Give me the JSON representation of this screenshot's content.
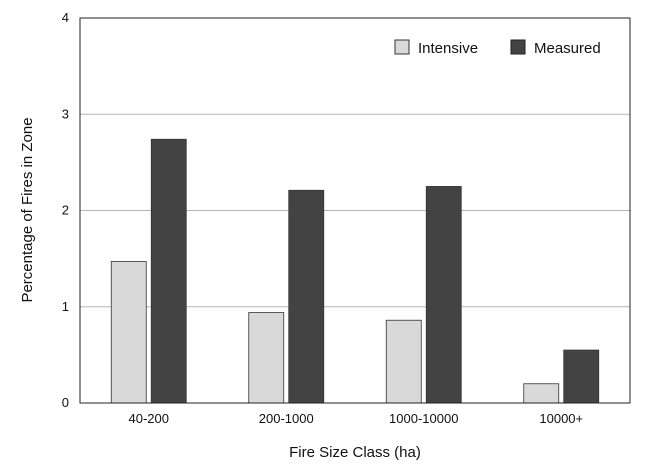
{
  "chart_data": {
    "type": "bar",
    "title": "",
    "xlabel": "Fire Size Class (ha)",
    "ylabel": "Percentage of Fires in Zone",
    "categories": [
      "40-200",
      "200-1000",
      "1000-10000",
      "10000+"
    ],
    "series": [
      {
        "name": "Intensive",
        "values": [
          1.47,
          0.94,
          0.86,
          0.2
        ],
        "color": "#d9d9d9"
      },
      {
        "name": "Measured",
        "values": [
          2.74,
          2.21,
          2.25,
          0.55
        ],
        "color": "#434343"
      }
    ],
    "ylim": [
      0,
      4
    ],
    "yticks": [
      "0",
      "1",
      "2",
      "3",
      "4"
    ],
    "grid": true,
    "legend_position": "top-right"
  }
}
